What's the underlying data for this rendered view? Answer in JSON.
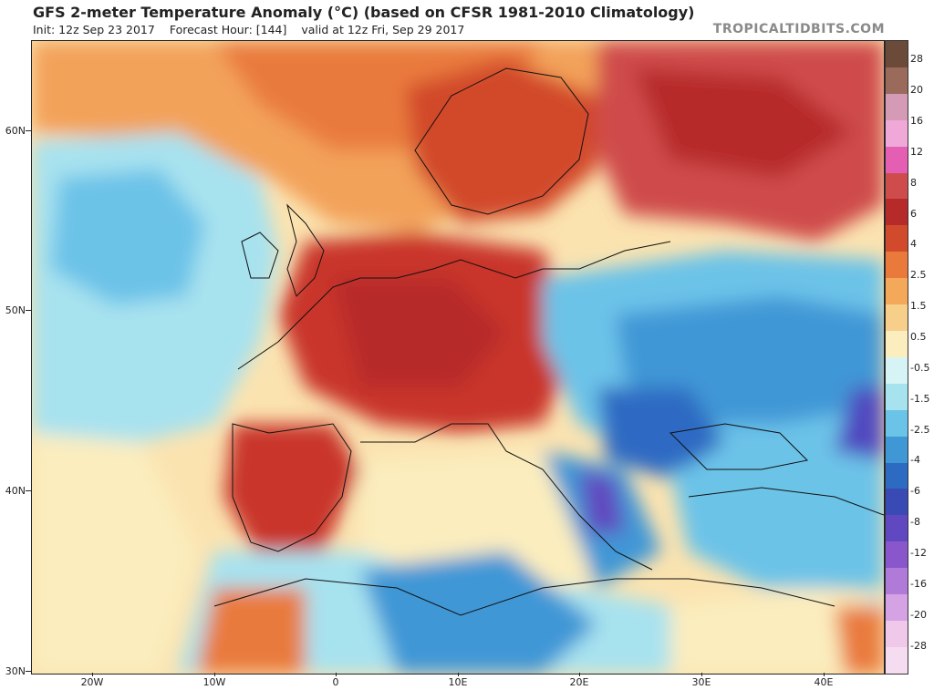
{
  "header": {
    "title": "GFS 2-meter Temperature Anomaly (°C) (based on CFSR 1981-2010 Climatology)",
    "init": "Init: 12z Sep 23 2017",
    "forecast": "Forecast Hour: [144]",
    "valid": "valid at 12z Fri, Sep 29 2017",
    "brand": "TROPICALTIDBITS.COM"
  },
  "axes": {
    "lat_labels": [
      "60N",
      "50N",
      "40N",
      "30N"
    ],
    "lon_labels": [
      "20W",
      "10W",
      "0",
      "10E",
      "20E",
      "30E",
      "40E"
    ]
  },
  "colorbar": {
    "labels": [
      "28",
      "20",
      "16",
      "12",
      "8",
      "6",
      "4",
      "2.5",
      "1.5",
      "0.5",
      "-0.5",
      "-1.5",
      "-2.5",
      "-4",
      "-6",
      "-8",
      "-12",
      "-16",
      "-20",
      "-28"
    ],
    "colors": [
      "#6b4a3a",
      "#9a6a5a",
      "#d59ab5",
      "#f0a8d8",
      "#e45fb4",
      "#cf4c4c",
      "#b72a2a",
      "#d24a2c",
      "#e97a3c",
      "#f3a85a",
      "#f7cf8a",
      "#fbedbe",
      "#d6f4f6",
      "#a7e2ef",
      "#6cc3e8",
      "#3f97d6",
      "#2d6bc3",
      "#3a4ab4",
      "#6048c0",
      "#8a56cc",
      "#b07ad8",
      "#d5a3e4",
      "#f0c8ea",
      "#f6dcf0"
    ]
  },
  "map_legend_icons": [
    "coastline-icon"
  ]
}
